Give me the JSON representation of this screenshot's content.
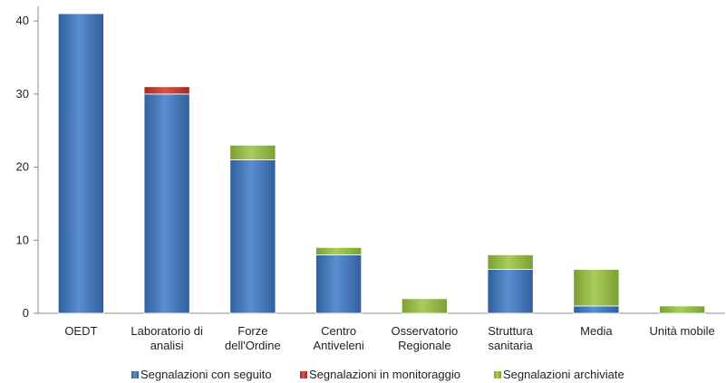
{
  "chart_data": {
    "type": "bar",
    "stacked": true,
    "categories": [
      [
        "OEDT"
      ],
      [
        "Laboratorio di",
        "analisi"
      ],
      [
        "Forze",
        "dell'Ordine"
      ],
      [
        "Centro",
        "Antiveleni"
      ],
      [
        "Osservatorio",
        "Regionale"
      ],
      [
        "Struttura",
        "sanitaria"
      ],
      [
        "Media"
      ],
      [
        "Unità mobile"
      ]
    ],
    "series": [
      {
        "name": "Segnalazioni con seguito",
        "color": "#4a7ebf",
        "values": [
          41,
          30,
          21,
          8,
          0,
          6,
          1,
          0
        ]
      },
      {
        "name": "Segnalazioni in monitoraggio",
        "color": "#c0392b",
        "values": [
          0,
          1,
          0,
          0,
          0,
          0,
          0,
          0
        ]
      },
      {
        "name": "Segnalazioni archiviate",
        "color": "#93bb45",
        "values": [
          0,
          0,
          2,
          1,
          2,
          2,
          5,
          1
        ]
      }
    ],
    "ylim": [
      0,
      42
    ],
    "yticks": [
      0,
      10,
      20,
      30,
      40
    ],
    "grid": false,
    "legend_position": "bottom"
  }
}
